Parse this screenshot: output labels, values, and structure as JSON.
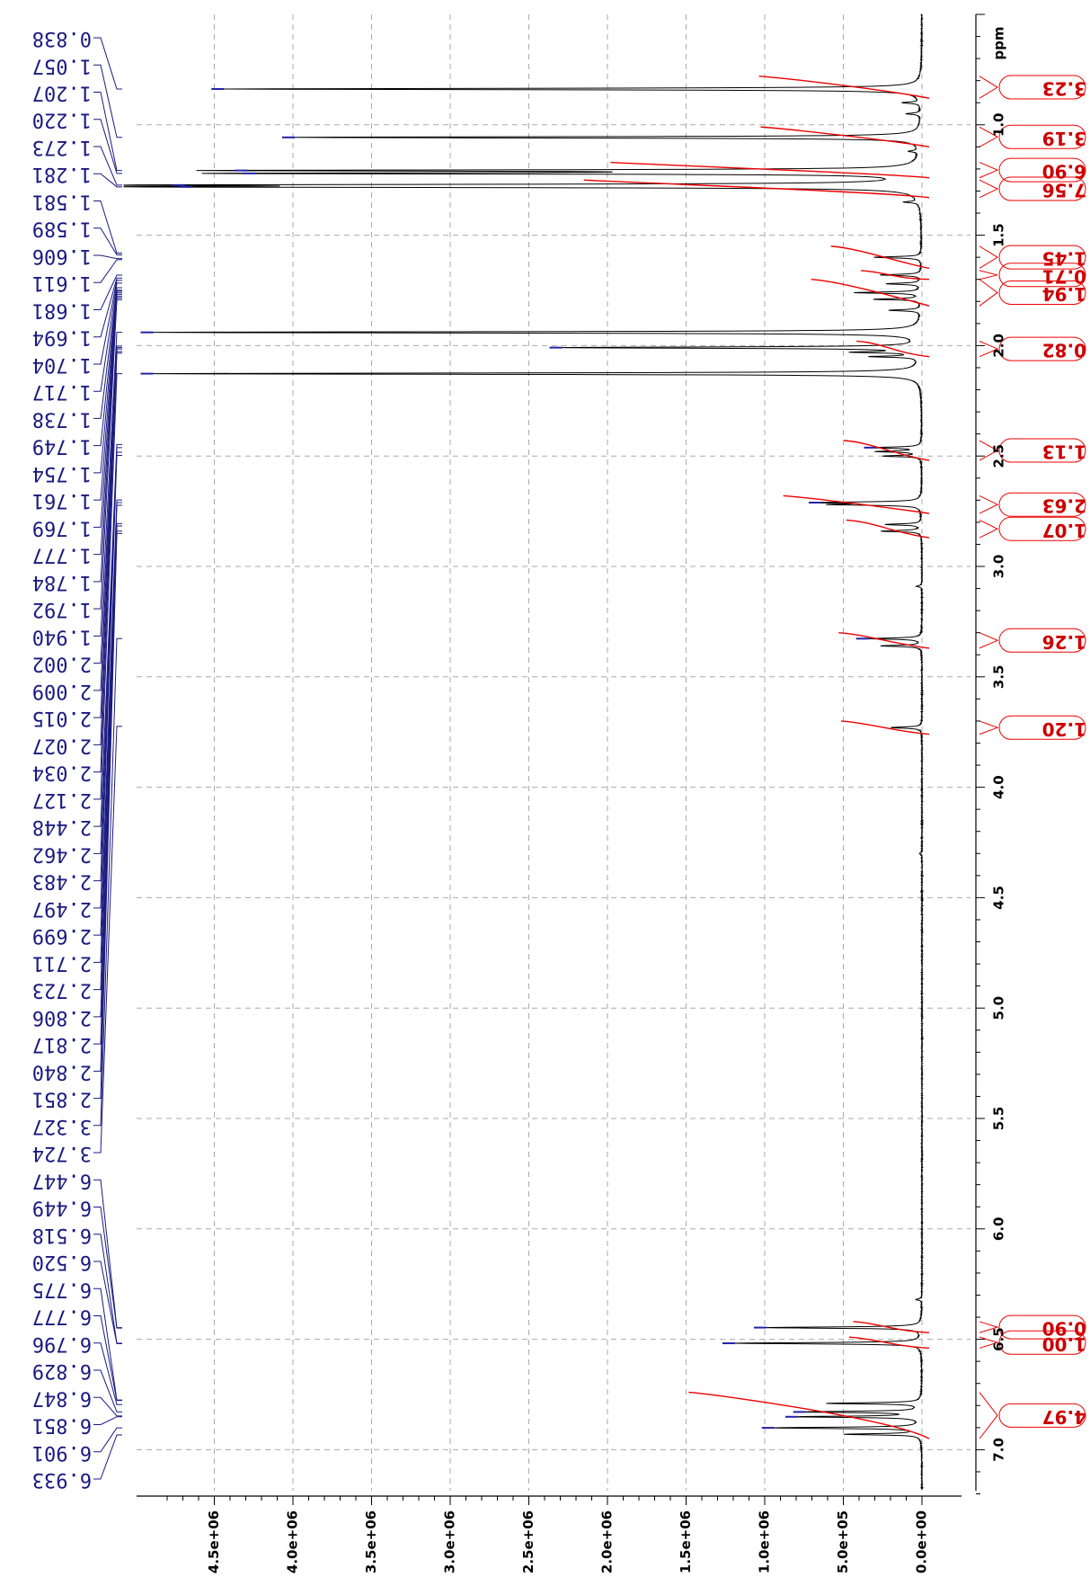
{
  "chart_data": {
    "type": "line",
    "title": "",
    "xlabel": "ppm",
    "ylabel": "",
    "x_axis": {
      "range": [
        7.2,
        0.5
      ],
      "ticks": [
        "1.0",
        "1.5",
        "2.0",
        "2.5",
        "3.0",
        "3.5",
        "4.0",
        "4.5",
        "5.0",
        "5.5",
        "6.0",
        "6.5",
        "7.0"
      ],
      "unit": "ppm"
    },
    "y_axis": {
      "range": [
        0,
        4900000
      ],
      "ticks": [
        "0.0e+00",
        "5.0e+05",
        "1.0e+06",
        "1.5e+06",
        "2.0e+06",
        "2.5e+06",
        "3.0e+06",
        "3.5e+06",
        "4.0e+06",
        "4.5e+06"
      ]
    },
    "grid": true,
    "peak_labels": [
      "0.838",
      "1.057",
      "1.207",
      "1.220",
      "1.273",
      "1.281",
      "1.581",
      "1.589",
      "1.606",
      "1.611",
      "1.681",
      "1.694",
      "1.704",
      "1.717",
      "1.738",
      "1.749",
      "1.754",
      "1.761",
      "1.769",
      "1.777",
      "1.784",
      "1.792",
      "1.940",
      "2.002",
      "2.009",
      "2.015",
      "2.027",
      "2.034",
      "2.127",
      "2.448",
      "2.462",
      "2.483",
      "2.497",
      "2.699",
      "2.711",
      "2.723",
      "2.806",
      "2.817",
      "2.840",
      "2.851",
      "3.327",
      "3.724",
      "6.447",
      "6.449",
      "6.518",
      "6.520",
      "6.775",
      "6.777",
      "6.796",
      "6.829",
      "6.847",
      "6.851",
      "6.901",
      "6.933"
    ],
    "integrals": [
      {
        "label": "3.23",
        "from": 0.78,
        "to": 0.88
      },
      {
        "label": "3.19",
        "from": 1.01,
        "to": 1.1
      },
      {
        "label": "6.90",
        "from": 1.17,
        "to": 1.24
      },
      {
        "label": "7.56",
        "from": 1.25,
        "to": 1.33
      },
      {
        "label": "1.45",
        "from": 1.55,
        "to": 1.65
      },
      {
        "label": "0.71",
        "from": 1.66,
        "to": 1.7
      },
      {
        "label": "1.94",
        "from": 1.7,
        "to": 1.82
      },
      {
        "label": "0.82",
        "from": 1.98,
        "to": 2.05
      },
      {
        "label": "1.13",
        "from": 2.43,
        "to": 2.52
      },
      {
        "label": "2.63",
        "from": 2.68,
        "to": 2.76
      },
      {
        "label": "1.07",
        "from": 2.79,
        "to": 2.87
      },
      {
        "label": "1.26",
        "from": 3.3,
        "to": 3.37
      },
      {
        "label": "1.20",
        "from": 3.7,
        "to": 3.76
      },
      {
        "label": "0.90",
        "from": 6.42,
        "to": 6.47
      },
      {
        "label": "1.00",
        "from": 6.49,
        "to": 6.54
      },
      {
        "label": "4.97",
        "from": 6.74,
        "to": 6.95
      }
    ],
    "peaks": [
      {
        "ppm": 0.838,
        "intensity": 4450000
      },
      {
        "ppm": 1.057,
        "intensity": 4000000
      },
      {
        "ppm": 1.207,
        "intensity": 4300000
      },
      {
        "ppm": 1.22,
        "intensity": 4250000
      },
      {
        "ppm": 1.273,
        "intensity": 4700000
      },
      {
        "ppm": 1.281,
        "intensity": 4650000
      },
      {
        "ppm": 1.94,
        "intensity": 4900000
      },
      {
        "ppm": 2.127,
        "intensity": 4900000
      },
      {
        "ppm": 2.009,
        "intensity": 2300000
      },
      {
        "ppm": 2.462,
        "intensity": 300000
      },
      {
        "ppm": 2.711,
        "intensity": 650000
      },
      {
        "ppm": 3.327,
        "intensity": 350000
      },
      {
        "ppm": 6.447,
        "intensity": 1000000
      },
      {
        "ppm": 6.518,
        "intensity": 1200000
      },
      {
        "ppm": 6.829,
        "intensity": 750000
      },
      {
        "ppm": 6.851,
        "intensity": 800000
      },
      {
        "ppm": 6.901,
        "intensity": 950000
      }
    ]
  },
  "colors": {
    "spectrum": "#000000",
    "integral": "#ee0000",
    "peak_label": "#1a1a80",
    "grid": "#aaaaaa"
  }
}
